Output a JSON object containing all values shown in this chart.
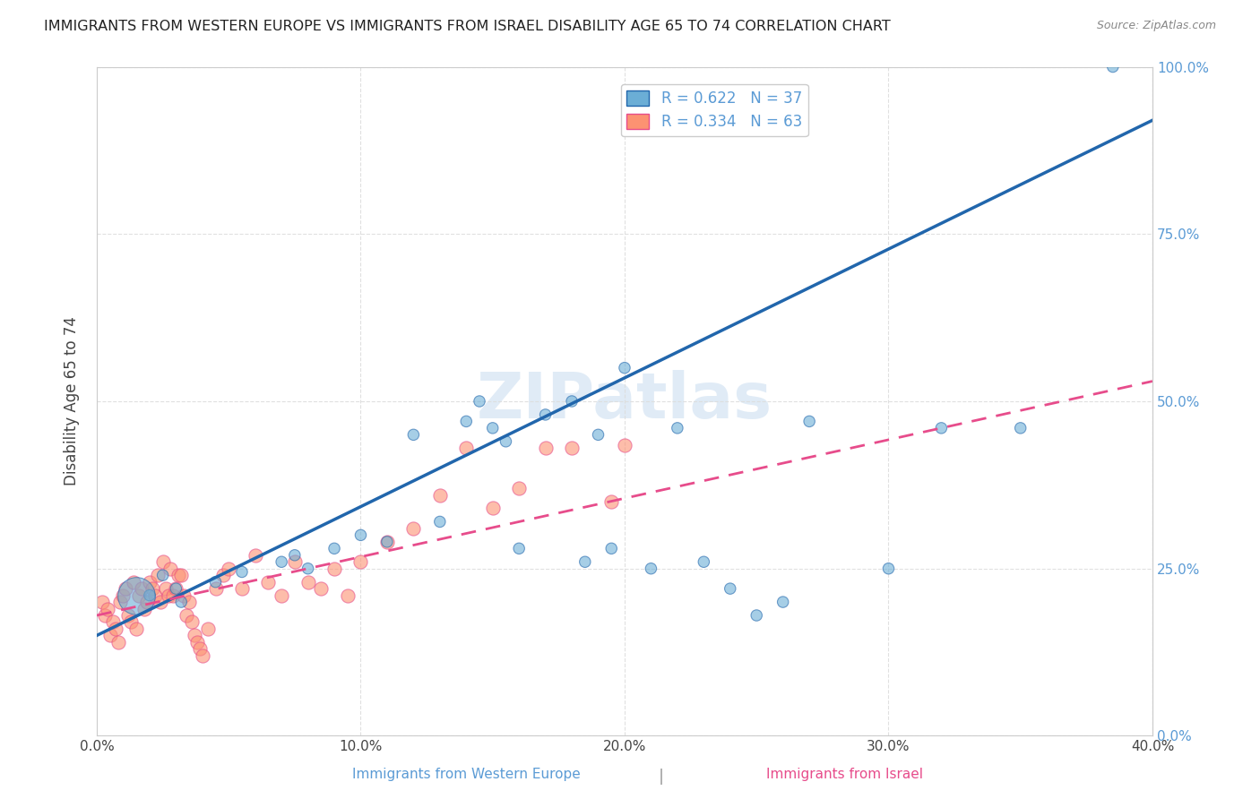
{
  "title": "IMMIGRANTS FROM WESTERN EUROPE VS IMMIGRANTS FROM ISRAEL DISABILITY AGE 65 TO 74 CORRELATION CHART",
  "source": "Source: ZipAtlas.com",
  "ylabel": "Disability Age 65 to 74",
  "xlabel_label_bottom_blue": "Immigrants from Western Europe",
  "xlabel_label_bottom_pink": "Immigrants from Israel",
  "legend_blue_r": "R = 0.622",
  "legend_blue_n": "N = 37",
  "legend_pink_r": "R = 0.334",
  "legend_pink_n": "N = 63",
  "blue_color": "#6baed6",
  "pink_color": "#fc9272",
  "blue_line_color": "#2166ac",
  "pink_line_color": "#e74c8b",
  "watermark_text": "ZIPatlas",
  "watermark_color": "#a8c8e8",
  "blue_scatter_x": [
    3.0,
    3.2,
    2.5,
    2.0,
    4.5,
    5.5,
    7.0,
    8.0,
    7.5,
    9.0,
    10.0,
    11.0,
    12.0,
    13.0,
    14.5,
    14.0,
    15.0,
    15.5,
    16.0,
    17.0,
    18.0,
    18.5,
    19.0,
    19.5,
    20.0,
    21.0,
    22.0,
    23.0,
    24.0,
    25.0,
    26.0,
    27.0,
    30.0,
    32.0,
    35.0,
    38.5
  ],
  "blue_scatter_y": [
    22.0,
    20.0,
    24.0,
    21.0,
    23.0,
    24.5,
    26.0,
    25.0,
    27.0,
    28.0,
    30.0,
    29.0,
    45.0,
    32.0,
    50.0,
    47.0,
    46.0,
    44.0,
    28.0,
    48.0,
    50.0,
    26.0,
    45.0,
    28.0,
    55.0,
    25.0,
    46.0,
    26.0,
    22.0,
    18.0,
    20.0,
    47.0,
    25.0,
    46.0,
    46.0,
    100.0
  ],
  "blue_scatter_size": [
    80,
    80,
    80,
    80,
    80,
    80,
    80,
    80,
    80,
    80,
    80,
    80,
    80,
    80,
    80,
    80,
    80,
    80,
    80,
    80,
    80,
    80,
    80,
    80,
    80,
    80,
    80,
    80,
    80,
    80,
    80,
    80,
    80,
    80,
    80,
    80
  ],
  "blue_large_x": 1.5,
  "blue_large_y": 21.0,
  "blue_large_size": 900,
  "blue_line_x0": 0.0,
  "blue_line_y0": 15.0,
  "blue_line_x1": 40.0,
  "blue_line_y1": 92.0,
  "pink_scatter_x": [
    0.2,
    0.3,
    0.4,
    0.5,
    0.6,
    0.7,
    0.8,
    0.9,
    1.0,
    1.1,
    1.2,
    1.3,
    1.4,
    1.5,
    1.6,
    1.7,
    1.8,
    1.9,
    2.0,
    2.1,
    2.2,
    2.3,
    2.4,
    2.5,
    2.6,
    2.7,
    2.8,
    2.9,
    3.0,
    3.1,
    3.2,
    3.3,
    3.4,
    3.5,
    3.6,
    3.7,
    3.8,
    3.9,
    4.0,
    4.2,
    4.5,
    4.8,
    5.0,
    5.5,
    6.0,
    6.5,
    7.0,
    7.5,
    8.0,
    8.5,
    9.0,
    9.5,
    10.0,
    11.0,
    12.0,
    13.0,
    14.0,
    15.0,
    16.0,
    17.0,
    18.0,
    19.5,
    20.0
  ],
  "pink_scatter_y": [
    20.0,
    18.0,
    19.0,
    15.0,
    17.0,
    16.0,
    14.0,
    20.0,
    21.0,
    22.0,
    18.0,
    17.0,
    23.0,
    16.0,
    21.0,
    22.0,
    19.0,
    20.0,
    23.0,
    22.0,
    21.0,
    24.0,
    20.0,
    26.0,
    22.0,
    21.0,
    25.0,
    21.0,
    22.0,
    24.0,
    24.0,
    21.0,
    18.0,
    20.0,
    17.0,
    15.0,
    14.0,
    13.0,
    12.0,
    16.0,
    22.0,
    24.0,
    25.0,
    22.0,
    27.0,
    23.0,
    21.0,
    26.0,
    23.0,
    22.0,
    25.0,
    21.0,
    26.0,
    29.0,
    31.0,
    36.0,
    43.0,
    34.0,
    37.0,
    43.0,
    43.0,
    35.0,
    43.5
  ],
  "pink_line_x0": 0.0,
  "pink_line_y0": 18.0,
  "pink_line_x1": 40.0,
  "pink_line_y1": 53.0,
  "xlim": [
    0,
    40
  ],
  "ylim": [
    0,
    100
  ],
  "xticks": [
    0,
    10,
    20,
    30,
    40
  ],
  "yticks": [
    0,
    25,
    50,
    75,
    100
  ],
  "xticklabels": [
    "0.0%",
    "10.0%",
    "20.0%",
    "30.0%",
    "40.0%"
  ],
  "yticklabels": [
    "0.0%",
    "25.0%",
    "50.0%",
    "75.0%",
    "100.0%"
  ],
  "grid_color": "#dddddd",
  "axis_label_color": "#5b9bd5",
  "bg_color": "#ffffff"
}
